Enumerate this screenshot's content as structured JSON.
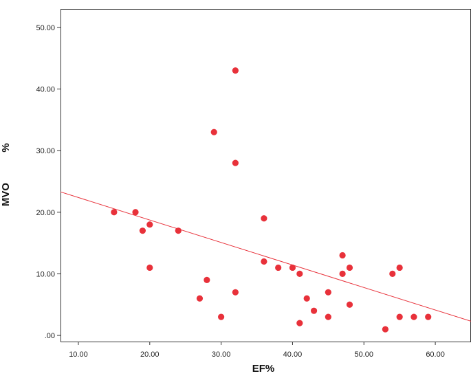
{
  "chart_data": {
    "type": "scatter",
    "title": "",
    "xlabel": "EF%",
    "ylabel_parts": [
      "MVO",
      "%"
    ],
    "xlim": [
      7.5,
      65
    ],
    "ylim": [
      -1,
      53
    ],
    "xticks": [
      10,
      20,
      30,
      40,
      50,
      60
    ],
    "yticks": [
      0,
      10,
      20,
      30,
      40,
      50
    ],
    "xtick_labels": [
      "10.00",
      "20.00",
      "30.00",
      "40.00",
      "50.00",
      "60.00"
    ],
    "ytick_labels": [
      ".00",
      "10.00",
      "20.00",
      "30.00",
      "40.00",
      "50.00"
    ],
    "grid": false,
    "legend": "none",
    "point_color": "#e8313a",
    "line_color": "#e8313a",
    "fit_line": {
      "x": [
        7.5,
        65
      ],
      "y": [
        23.3,
        2.3
      ]
    },
    "points": [
      {
        "x": 15,
        "y": 20
      },
      {
        "x": 18,
        "y": 20
      },
      {
        "x": 19,
        "y": 17
      },
      {
        "x": 20,
        "y": 18
      },
      {
        "x": 20,
        "y": 11
      },
      {
        "x": 24,
        "y": 17
      },
      {
        "x": 27,
        "y": 6
      },
      {
        "x": 28,
        "y": 9
      },
      {
        "x": 29,
        "y": 33
      },
      {
        "x": 30,
        "y": 3
      },
      {
        "x": 32,
        "y": 43
      },
      {
        "x": 32,
        "y": 28
      },
      {
        "x": 32,
        "y": 7
      },
      {
        "x": 36,
        "y": 19
      },
      {
        "x": 36,
        "y": 12
      },
      {
        "x": 38,
        "y": 11
      },
      {
        "x": 40,
        "y": 11
      },
      {
        "x": 41,
        "y": 10
      },
      {
        "x": 41,
        "y": 2
      },
      {
        "x": 42,
        "y": 6
      },
      {
        "x": 43,
        "y": 4
      },
      {
        "x": 45,
        "y": 7
      },
      {
        "x": 45,
        "y": 3
      },
      {
        "x": 47,
        "y": 13
      },
      {
        "x": 47,
        "y": 10
      },
      {
        "x": 48,
        "y": 11
      },
      {
        "x": 48,
        "y": 5
      },
      {
        "x": 53,
        "y": 1
      },
      {
        "x": 54,
        "y": 10
      },
      {
        "x": 55,
        "y": 11
      },
      {
        "x": 55,
        "y": 3
      },
      {
        "x": 57,
        "y": 3
      },
      {
        "x": 59,
        "y": 3
      }
    ]
  }
}
